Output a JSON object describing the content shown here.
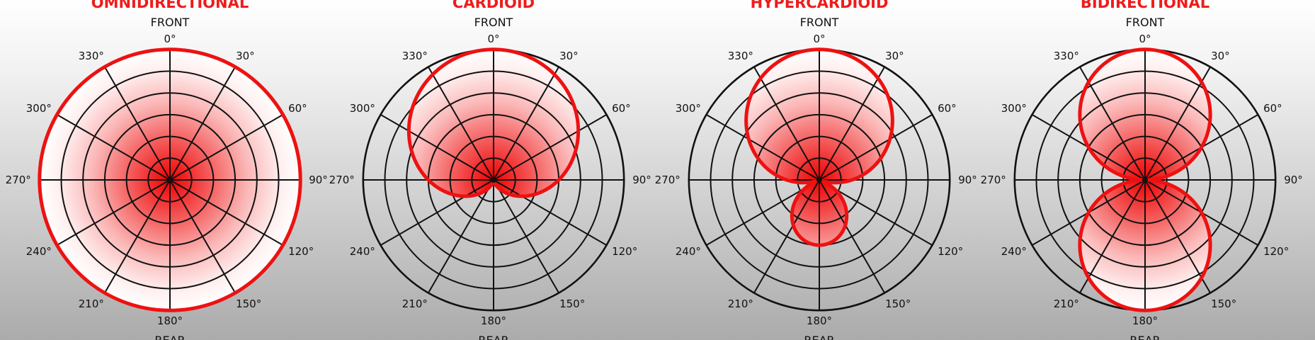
{
  "diagrams": [
    {
      "title": "OMNIDIRECTIONAL",
      "pattern": "omni"
    },
    {
      "title": "CARDIOID",
      "pattern": "cardioid"
    },
    {
      "title": "HYPERCARDIOID",
      "pattern": "hypercardioid"
    },
    {
      "title": "BIDIRECTIONAL",
      "pattern": "bidirectional"
    }
  ],
  "front_label": "FRONT",
  "rear_label": "REAR",
  "angle_labels": [
    "0°",
    "30°",
    "60°",
    "90°",
    "120°",
    "150°",
    "180°",
    "210°",
    "240°",
    "270°",
    "300°",
    "330°"
  ],
  "colors": {
    "accent": "#ee1111",
    "title": "#ee1c1c",
    "grid": "#111111"
  }
}
